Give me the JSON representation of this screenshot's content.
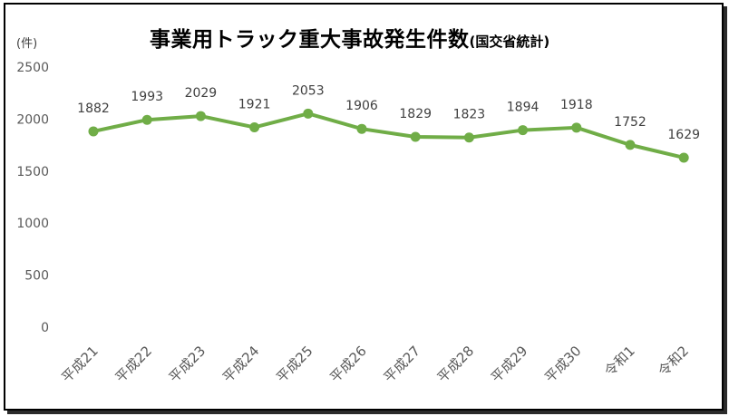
{
  "chart_data": {
    "type": "line",
    "title": "事業用トラック重大事故発生件数",
    "title_suffix": "(国交省統計)",
    "ylabel": "(件)",
    "categories": [
      "平成21",
      "平成22",
      "平成23",
      "平成24",
      "平成25",
      "平成26",
      "平成27",
      "平成28",
      "平成29",
      "平成30",
      "令和1",
      "令和2"
    ],
    "series": [
      {
        "values": [
          1882,
          1993,
          2029,
          1921,
          2053,
          1906,
          1829,
          1823,
          1894,
          1918,
          1752,
          1629
        ],
        "color": "#70AD47"
      }
    ],
    "ylim": [
      0,
      2500
    ],
    "yticks": [
      "0",
      "500",
      "1000",
      "1500",
      "2000",
      "2500"
    ],
    "grid": false,
    "legend": "none",
    "data_labels": true
  }
}
